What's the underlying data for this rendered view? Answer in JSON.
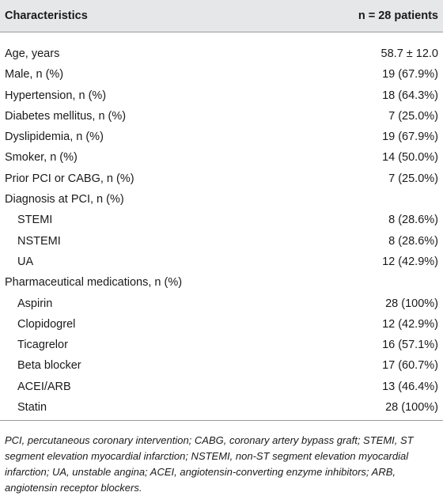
{
  "table": {
    "header": [
      "Characteristics",
      "n = 28 patients"
    ],
    "rows": [
      {
        "label": "Age, years",
        "value": "58.7 ± 12.0"
      },
      {
        "label": "Male, n (%)",
        "value": "19 (67.9%)"
      },
      {
        "label": "Hypertension, n (%)",
        "value": "18 (64.3%)"
      },
      {
        "label": "Diabetes mellitus, n (%)",
        "value": "7 (25.0%)"
      },
      {
        "label": "Dyslipidemia, n (%)",
        "value": "19 (67.9%)"
      },
      {
        "label": "Smoker, n (%)",
        "value": "14 (50.0%)"
      },
      {
        "label": "Prior PCI or CABG, n (%)",
        "value": "7 (25.0%)"
      },
      {
        "label": "Diagnosis at PCI, n (%)"
      },
      {
        "label": "STEMI",
        "value": "8 (28.6%)",
        "indent": true
      },
      {
        "label": "NSTEMI",
        "value": "8 (28.6%)",
        "indent": true
      },
      {
        "label": "UA",
        "value": "12 (42.9%)",
        "indent": true
      },
      {
        "label": "Pharmaceutical medications, n (%)"
      },
      {
        "label": "Aspirin",
        "value": "28 (100%)",
        "indent": true
      },
      {
        "label": "Clopidogrel",
        "value": "12 (42.9%)",
        "indent": true
      },
      {
        "label": "Ticagrelor",
        "value": "16 (57.1%)",
        "indent": true
      },
      {
        "label": "Beta blocker",
        "value": "17 (60.7%)",
        "indent": true
      },
      {
        "label": "ACEI/ARB",
        "value": "13 (46.4%)",
        "indent": true
      },
      {
        "label": "Statin",
        "value": "28 (100%)",
        "indent": true
      }
    ],
    "footnote": "PCI, percutaneous coronary intervention; CABG, coronary artery bypass graft; STEMI, ST segment elevation myocardial infarction; NSTEMI, non-ST segment elevation myocardial infarction; UA, unstable angina; ACEI, angiotensin-converting enzyme inhibitors; ARB, angiotensin receptor blockers."
  }
}
